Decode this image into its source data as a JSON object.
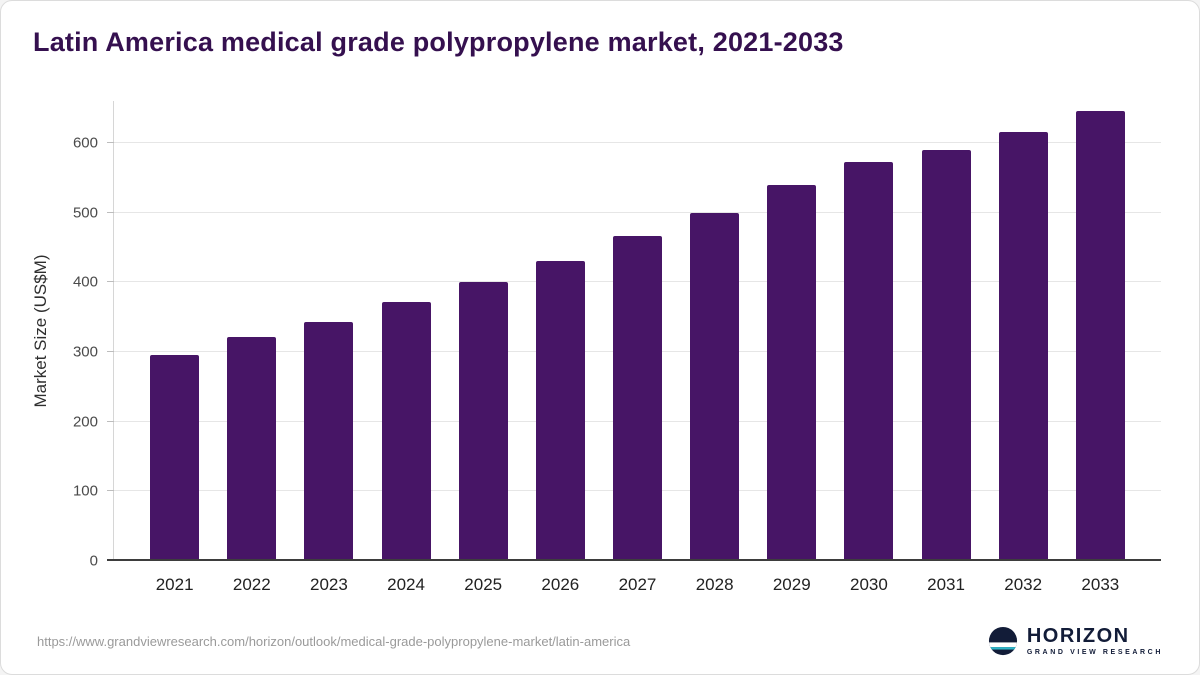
{
  "page": {
    "footer_url": "https://www.grandviewresearch.com/horizon/outlook/medical-grade-polypropylene-market/latin-america",
    "logo": {
      "name": "HORIZON",
      "subtext": "GRAND VIEW RESEARCH"
    }
  },
  "chart_data": {
    "type": "bar",
    "title": "Latin America medical grade polypropylene market, 2021-2033",
    "categories": [
      "2021",
      "2022",
      "2023",
      "2024",
      "2025",
      "2026",
      "2027",
      "2028",
      "2029",
      "2030",
      "2031",
      "2032",
      "2033"
    ],
    "values": [
      295,
      322,
      343,
      372,
      400,
      430,
      467,
      500,
      540,
      572,
      590,
      616,
      645
    ],
    "xlabel": "",
    "ylabel": "Market Size (US$M)",
    "ylim": [
      0,
      660
    ],
    "yticks": [
      0,
      100,
      200,
      300,
      400,
      500,
      600
    ],
    "grid": true,
    "legend": false,
    "bar_color": "#471566",
    "title_color": "#35104f"
  }
}
